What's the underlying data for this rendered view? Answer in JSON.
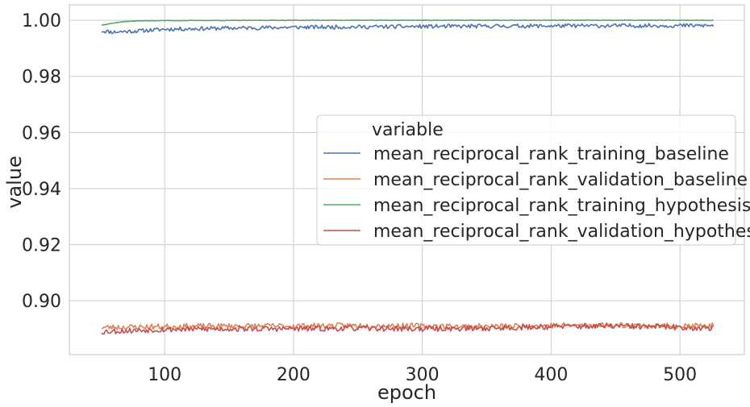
{
  "chart_data": {
    "type": "line",
    "xlabel": "epoch",
    "ylabel": "value",
    "xlim": [
      26,
      550
    ],
    "ylim": [
      0.8808,
      1.0055
    ],
    "xticks": [
      100,
      200,
      300,
      400,
      500
    ],
    "xtick_labels": [
      "100",
      "200",
      "300",
      "400",
      "500"
    ],
    "yticks": [
      0.9,
      0.92,
      0.94,
      0.96,
      0.98,
      1.0
    ],
    "ytick_labels": [
      "0.90",
      "0.92",
      "0.94",
      "0.96",
      "0.98",
      "1.00"
    ],
    "grid": true,
    "legend": {
      "title": "variable",
      "placement": "center-right"
    },
    "x_range": [
      51,
      526
    ],
    "series": [
      {
        "name": "mean_reciprocal_rank_training_baseline",
        "color": "#4c72b0",
        "knots": [
          [
            51,
            0.9962
          ],
          [
            60,
            0.9958
          ],
          [
            70,
            0.996
          ],
          [
            90,
            0.9965
          ],
          [
            100,
            0.9968
          ],
          [
            150,
            0.9972
          ],
          [
            200,
            0.9975
          ],
          [
            300,
            0.9978
          ],
          [
            400,
            0.998
          ],
          [
            500,
            0.9981
          ],
          [
            526,
            0.9981
          ]
        ],
        "noise": 0.0007,
        "seed": 11
      },
      {
        "name": "mean_reciprocal_rank_validation_baseline",
        "color": "#dd8452",
        "knots": [
          [
            51,
            0.8905
          ],
          [
            100,
            0.8908
          ],
          [
            150,
            0.891
          ],
          [
            200,
            0.891
          ],
          [
            250,
            0.8912
          ],
          [
            300,
            0.891
          ],
          [
            350,
            0.8908
          ],
          [
            400,
            0.8912
          ],
          [
            450,
            0.8913
          ],
          [
            500,
            0.891
          ],
          [
            526,
            0.891
          ]
        ],
        "noise": 0.001,
        "seed": 23
      },
      {
        "name": "mean_reciprocal_rank_training_hypothesis",
        "color": "#55a868",
        "knots": [
          [
            51,
            0.9983
          ],
          [
            55,
            0.9986
          ],
          [
            60,
            0.999
          ],
          [
            70,
            0.9996
          ],
          [
            80,
            0.9998
          ],
          [
            100,
            0.9999
          ],
          [
            200,
            1.0
          ],
          [
            526,
            1.0
          ]
        ],
        "noise": 8e-05,
        "seed": 37
      },
      {
        "name": "mean_reciprocal_rank_validation_hypothesis",
        "color": "#c44e52",
        "knots": [
          [
            51,
            0.889
          ],
          [
            100,
            0.8898
          ],
          [
            150,
            0.89
          ],
          [
            200,
            0.89
          ],
          [
            250,
            0.8902
          ],
          [
            300,
            0.89
          ],
          [
            350,
            0.8902
          ],
          [
            400,
            0.8908
          ],
          [
            450,
            0.891
          ],
          [
            500,
            0.8905
          ],
          [
            526,
            0.8902
          ]
        ],
        "noise": 0.001,
        "seed": 53
      }
    ]
  }
}
